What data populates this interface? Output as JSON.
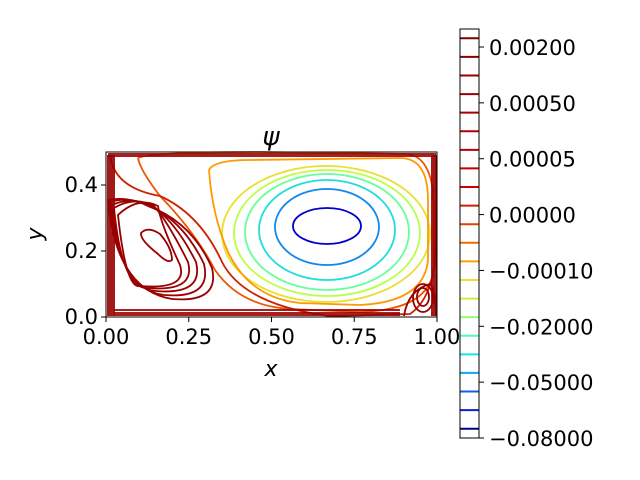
{
  "chart_data": {
    "type": "contour",
    "title": "ψ",
    "xlabel": "x",
    "ylabel": "y",
    "xlim": [
      0.0,
      1.0
    ],
    "ylim": [
      0.0,
      0.5
    ],
    "xticks": [
      "0.00",
      "0.25",
      "0.50",
      "0.75",
      "1.00"
    ],
    "yticks": [
      "0.0",
      "0.2",
      "0.4"
    ],
    "xtick_values": [
      0.0,
      0.25,
      0.5,
      0.75,
      1.0
    ],
    "ytick_values": [
      0.0,
      0.2,
      0.4
    ],
    "grid": false,
    "colorbar": {
      "ticks": [
        "0.00200",
        "0.00050",
        "0.00005",
        "0.00000",
        "−0.00010",
        "−0.02000",
        "−0.05000",
        "−0.08000"
      ],
      "level_colors": [
        "#800000",
        "#8a0000",
        "#940000",
        "#9e0000",
        "#a80000",
        "#b20000",
        "#bc0000",
        "#c60000",
        "#d00000",
        "#da1a00",
        "#e84000",
        "#f46a00",
        "#ffa000",
        "#f0e030",
        "#c8f040",
        "#90ff70",
        "#50ffb0",
        "#10e8e8",
        "#10a8f0",
        "#1060e0",
        "#1020d0",
        "#000080"
      ]
    },
    "contour_colors": {
      "outer": "#990000",
      "c1": "#cc2200",
      "c2": "#ee5500",
      "c3": "#ff9900",
      "c4": "#e8e030",
      "c5": "#bbff44",
      "c6": "#66ff99",
      "c7": "#22dddd",
      "c8": "#1188ee",
      "c9": "#0000cc"
    }
  }
}
